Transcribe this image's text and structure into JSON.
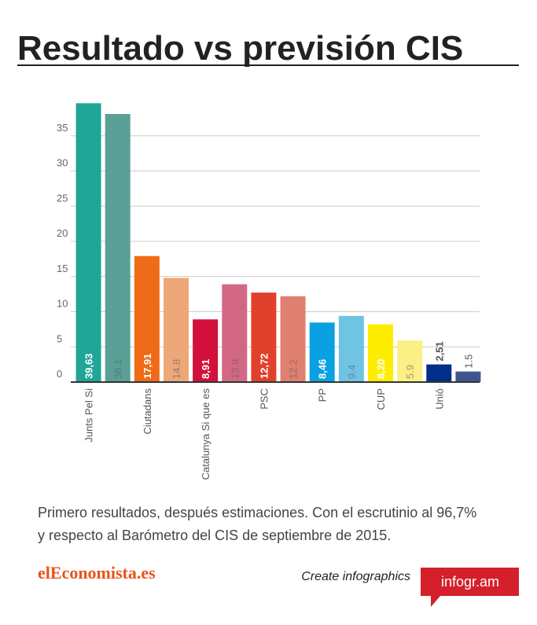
{
  "chart_data": {
    "type": "bar",
    "title": "Resultado vs previsión CIS",
    "categories": [
      "Junts Pel Si",
      null,
      "Ciutadans",
      null,
      "Catalunya Si que es",
      null,
      "PSC",
      null,
      "PP",
      null,
      "CUP",
      null,
      "Unió",
      null
    ],
    "values": [
      39.63,
      38.1,
      17.91,
      14.8,
      8.91,
      13.9,
      12.72,
      12.2,
      8.46,
      9.4,
      8.2,
      5.9,
      2.51,
      1.5
    ],
    "value_labels": [
      "39,63",
      "38.1",
      "17,91",
      "14.8",
      "8,91",
      "13.9",
      "12,72",
      "12.2",
      "8,46",
      "9.4",
      "8,20",
      "5.9",
      "2,51",
      "1.5"
    ],
    "colors": [
      "#1fa698",
      "#5aa096",
      "#ef6b17",
      "#eea779",
      "#d3103b",
      "#d36884",
      "#e1412c",
      "#e08070",
      "#0aa1e2",
      "#6fc3e3",
      "#fded00",
      "#fcef85",
      "#002f8a",
      "#3e5590"
    ],
    "ylim": [
      0,
      40
    ],
    "yticks": [
      0,
      5,
      10,
      15,
      20,
      25,
      30,
      35
    ],
    "grid": true
  },
  "caption": "Primero resultados, después estimaciones. Con el escrutinio al 96,7% y respecto al Barómetro del CIS de septiembre de 2015.",
  "footer": {
    "logo": "elEconomista.es",
    "cta": "Create infographics",
    "brand": "infogr.am"
  }
}
